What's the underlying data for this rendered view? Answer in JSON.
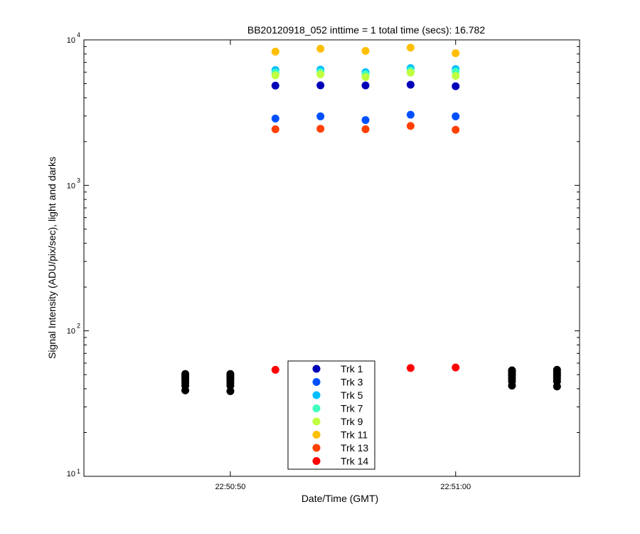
{
  "chart_data": {
    "type": "scatter",
    "title": "BB20120918_052 inttime = 1 total time (secs): 16.782",
    "xlabel": "Date/Time (GMT)",
    "ylabel": "Signal Intensity (ADU/pix/sec), light and darks",
    "y_scale": "log",
    "ylim": [
      10,
      10000
    ],
    "xlim": [
      "22:50:43.5",
      "22:51:05.5"
    ],
    "x_ticks": [
      "22:50:50",
      "22:51:00"
    ],
    "y_ticks": [
      {
        "value": 10,
        "base": "10",
        "exp": "1"
      },
      {
        "value": 100,
        "base": "10",
        "exp": "2"
      },
      {
        "value": 1000,
        "base": "10",
        "exp": "3"
      },
      {
        "value": 10000,
        "base": "10",
        "exp": "4"
      }
    ],
    "grid": false,
    "legend_position": "bottom-center",
    "series": [
      {
        "name": "Trk 1",
        "color": "#0000b8",
        "x": [
          "22:50:52",
          "22:50:54",
          "22:50:56",
          "22:50:58",
          "22:51:00"
        ],
        "y": [
          4850,
          4870,
          4860,
          4920,
          4800
        ]
      },
      {
        "name": "Trk 3",
        "color": "#0050ff",
        "x": [
          "22:50:52",
          "22:50:54",
          "22:50:56",
          "22:50:58",
          "22:51:00"
        ],
        "y": [
          2880,
          2980,
          2810,
          3060,
          2980
        ]
      },
      {
        "name": "Trk 5",
        "color": "#00bfff",
        "x": [
          "22:50:52",
          "22:50:54",
          "22:50:56",
          "22:50:58",
          "22:51:00"
        ],
        "y": [
          6200,
          6250,
          6000,
          6400,
          6300
        ]
      },
      {
        "name": "Trk 7",
        "color": "#40ffbf",
        "x": [
          "22:50:52",
          "22:50:54",
          "22:50:56",
          "22:50:58",
          "22:51:00"
        ],
        "y": [
          5950,
          6000,
          5800,
          6150,
          6050
        ]
      },
      {
        "name": "Trk 9",
        "color": "#bfff40",
        "x": [
          "22:50:52",
          "22:50:54",
          "22:50:56",
          "22:50:58",
          "22:51:00"
        ],
        "y": [
          5700,
          5800,
          5550,
          5950,
          5650
        ]
      },
      {
        "name": "Trk 11",
        "color": "#ffbf00",
        "x": [
          "22:50:52",
          "22:50:54",
          "22:50:56",
          "22:50:58",
          "22:51:00"
        ],
        "y": [
          8300,
          8700,
          8400,
          8850,
          8100
        ]
      },
      {
        "name": "Trk 13",
        "color": "#ff4000",
        "x": [
          "22:50:52",
          "22:50:54",
          "22:50:56",
          "22:50:58",
          "22:51:00"
        ],
        "y": [
          2430,
          2450,
          2430,
          2560,
          2410
        ]
      },
      {
        "name": "Trk 14",
        "color": "#ff0000",
        "x": [
          "22:50:52",
          "22:50:58",
          "22:51:00"
        ],
        "y": [
          54,
          55.5,
          56
        ]
      }
    ],
    "darks": {
      "color": "#000000",
      "x": [
        "22:50:48",
        "22:50:50",
        "22:51:02.5",
        "22:51:04.5"
      ],
      "y": [
        [
          39,
          42,
          44,
          46,
          47.5,
          49,
          50.5
        ],
        [
          38.5,
          42,
          44,
          46,
          47.5,
          49,
          50.5
        ],
        [
          42,
          45,
          47,
          49,
          50.5,
          52,
          53.5
        ],
        [
          41.5,
          45,
          47,
          49,
          50.5,
          52,
          54
        ]
      ]
    }
  }
}
